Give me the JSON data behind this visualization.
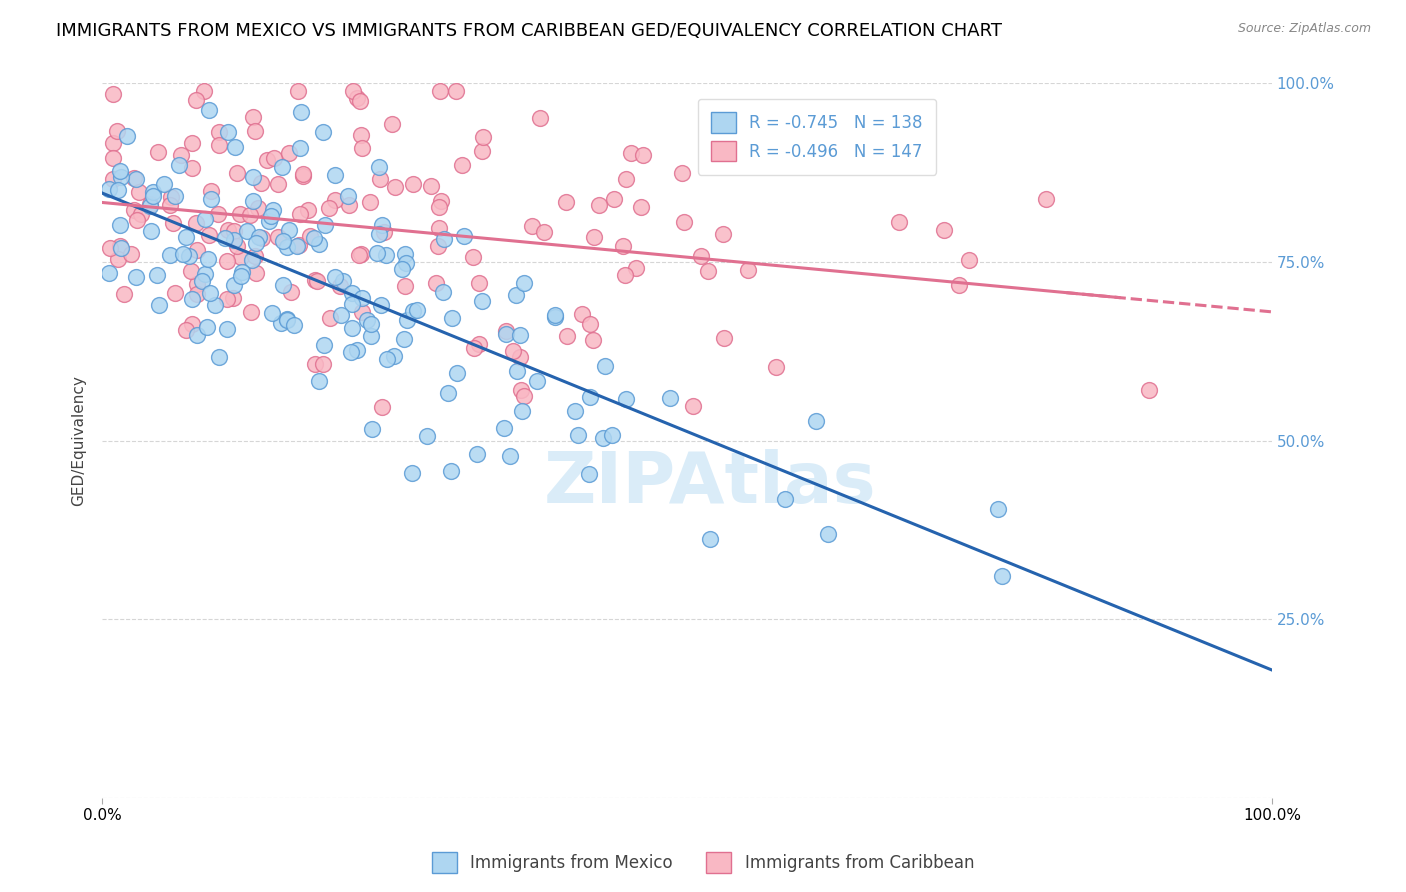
{
  "title": "IMMIGRANTS FROM MEXICO VS IMMIGRANTS FROM CARIBBEAN GED/EQUIVALENCY CORRELATION CHART",
  "source": "Source: ZipAtlas.com",
  "ylabel": "GED/Equivalency",
  "mexico_face_color": "#aed6f1",
  "mexico_edge_color": "#5b9bd5",
  "caribbean_face_color": "#f9b8c4",
  "caribbean_edge_color": "#e07090",
  "mexico_line_color": "#2563ae",
  "caribbean_line_color": "#e07090",
  "mexico_R": -0.745,
  "mexico_N": 138,
  "caribbean_R": -0.496,
  "caribbean_N": 147,
  "legend_label_mexico": "Immigrants from Mexico",
  "legend_label_caribbean": "Immigrants from Caribbean",
  "background_color": "#ffffff",
  "grid_color": "#cccccc",
  "watermark": "ZIPAtlas",
  "title_fontsize": 13,
  "legend_fontsize": 12,
  "axis_fontsize": 11,
  "right_tick_color": "#5b9bd5",
  "mexico_seed": 42,
  "caribbean_seed": 7,
  "xlim": [
    0,
    1
  ],
  "ylim": [
    0,
    1
  ],
  "mexico_intercept": 0.85,
  "mexico_slope": -0.65,
  "caribbean_intercept": 0.83,
  "caribbean_slope": -0.15
}
